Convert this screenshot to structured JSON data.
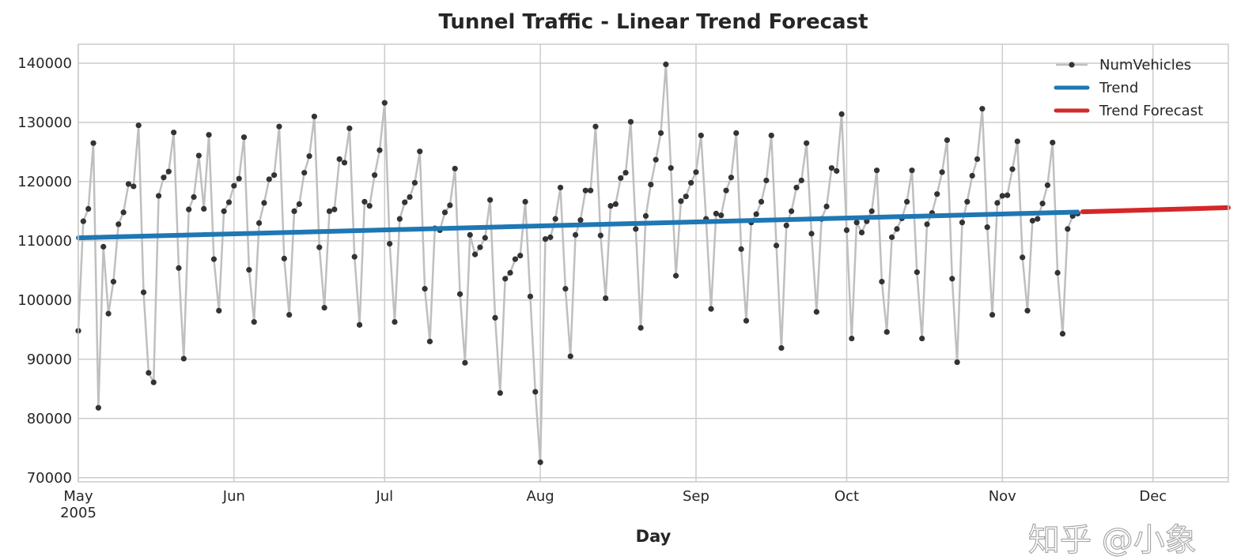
{
  "chart_data": {
    "type": "line",
    "title": "Tunnel Traffic - Linear Trend Forecast",
    "xlabel": "Day",
    "ylabel": "",
    "x_start": "2005-05-01",
    "x_frequency": "daily",
    "xlim": [
      "2005-05-01",
      "2005-12-16"
    ],
    "ylim": [
      69300,
      143200
    ],
    "grid": true,
    "legend_position": "top-right",
    "x_ticks": [
      {
        "date": "2005-05-01",
        "label": "May",
        "sublabel": "2005"
      },
      {
        "date": "2005-06-01",
        "label": "Jun"
      },
      {
        "date": "2005-07-01",
        "label": "Jul"
      },
      {
        "date": "2005-08-01",
        "label": "Aug"
      },
      {
        "date": "2005-09-01",
        "label": "Sep"
      },
      {
        "date": "2005-10-01",
        "label": "Oct"
      },
      {
        "date": "2005-11-01",
        "label": "Nov"
      },
      {
        "date": "2005-12-01",
        "label": "Dec"
      }
    ],
    "y_ticks": [
      70000,
      80000,
      90000,
      100000,
      110000,
      120000,
      130000,
      140000
    ],
    "series": [
      {
        "name": "NumVehicles",
        "color": "#bfbfbf",
        "marker_color": "#333333",
        "values": [
          94800,
          113300,
          115400,
          126500,
          81800,
          109000,
          97700,
          103100,
          112800,
          114800,
          119600,
          119200,
          129500,
          101300,
          87700,
          86100,
          117600,
          120700,
          121700,
          128300,
          105400,
          90100,
          115300,
          117400,
          124400,
          115400,
          127900,
          106900,
          98200,
          115000,
          116500,
          119300,
          120500,
          127500,
          105100,
          96300,
          113000,
          116400,
          120400,
          121100,
          129300,
          107000,
          97500,
          115000,
          116200,
          121500,
          124300,
          131000,
          108900,
          98700,
          115000,
          115300,
          123800,
          123200,
          129000,
          107300,
          95800,
          116600,
          115900,
          121100,
          125300,
          133300,
          109500,
          96300,
          113700,
          116500,
          117400,
          119800,
          125100,
          101900,
          93000,
          112100,
          111800,
          114800,
          116000,
          122200,
          101000,
          89400,
          111000,
          107700,
          108900,
          110500,
          116900,
          97000,
          84300,
          103600,
          104600,
          106900,
          107500,
          116600,
          100600,
          84500,
          72600,
          110300,
          110600,
          113700,
          119000,
          101900,
          90500,
          111000,
          113500,
          118500,
          118500,
          129300,
          110900,
          100300,
          115900,
          116200,
          120600,
          121500,
          130100,
          112000,
          95300,
          114200,
          119500,
          123700,
          128200,
          139800,
          122300,
          104100,
          116700,
          117500,
          119800,
          121600,
          127800,
          113700,
          98500,
          114600,
          114300,
          118500,
          120700,
          128200,
          108600,
          96500,
          113100,
          114500,
          116600,
          120200,
          127800,
          109200,
          91900,
          112600,
          115000,
          119000,
          120200,
          126500,
          111200,
          98000,
          113700,
          115800,
          122300,
          121800,
          131400,
          111800,
          93500,
          113100,
          111400,
          113300,
          115000,
          121900,
          103100,
          94600,
          110600,
          112000,
          113800,
          116600,
          121900,
          104700,
          93500,
          112800,
          114700,
          117900,
          121600,
          127000,
          103600,
          89500,
          113100,
          116600,
          121000,
          123800,
          132300,
          112300,
          97500,
          116400,
          117600,
          117700,
          122100,
          126800,
          107200,
          98200,
          113400,
          113700,
          116300,
          119400,
          126600,
          104600,
          94300,
          112000,
          114200,
          114600
        ]
      },
      {
        "name": "Trend",
        "color": "#1f77b4",
        "start": {
          "date": "2005-05-01",
          "value": 110500
        },
        "end": {
          "date": "2005-11-16",
          "value": 114850
        }
      },
      {
        "name": "Trend Forecast",
        "color": "#d62728",
        "start": {
          "date": "2005-11-17",
          "value": 114900
        },
        "end": {
          "date": "2005-12-16",
          "value": 115600
        }
      }
    ]
  },
  "watermark": "知乎 @小象"
}
